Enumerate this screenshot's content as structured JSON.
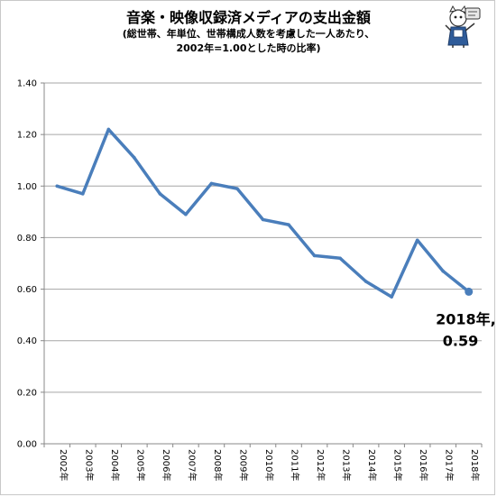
{
  "chart_data": {
    "type": "line",
    "title": "音楽・映像収録済メディアの支出金額",
    "subtitle_lines": [
      "(総世帯、年単位、世帯構成人数を考慮した一人あたり、",
      "2002年=1.00とした時の比率)"
    ],
    "categories": [
      "2002年",
      "2003年",
      "2004年",
      "2005年",
      "2006年",
      "2007年",
      "2008年",
      "2009年",
      "2010年",
      "2011年",
      "2012年",
      "2013年",
      "2014年",
      "2015年",
      "2016年",
      "2017年",
      "2018年"
    ],
    "series": [
      {
        "values": [
          1.0,
          0.97,
          1.22,
          1.11,
          0.97,
          0.89,
          1.01,
          0.99,
          0.87,
          0.85,
          0.73,
          0.72,
          0.63,
          0.57,
          0.79,
          0.67,
          0.59
        ]
      }
    ],
    "ylim": [
      0,
      1.4
    ],
    "yticks": [
      "0.00",
      "0.20",
      "0.40",
      "0.60",
      "0.80",
      "1.00",
      "1.20",
      "1.40"
    ],
    "grid": true,
    "line_color": "#4a7ebb",
    "annotation": {
      "index": 16,
      "line1": "2018年,",
      "line2": "0.59"
    }
  }
}
